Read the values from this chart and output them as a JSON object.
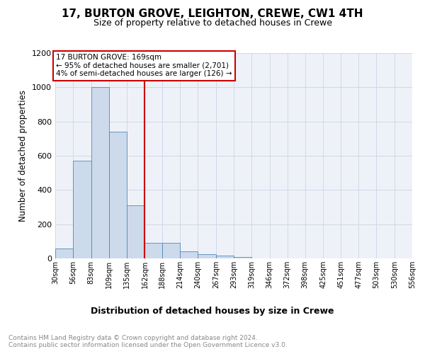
{
  "title": "17, BURTON GROVE, LEIGHTON, CREWE, CW1 4TH",
  "subtitle": "Size of property relative to detached houses in Crewe",
  "xlabel": "Distribution of detached houses by size in Crewe",
  "ylabel": "Number of detached properties",
  "bar_color": "#ccdaeb",
  "bar_edge_color": "#5588bb",
  "background_color": "#eef2f8",
  "grid_color": "#d0d8e8",
  "annotation_box_color": "#cc0000",
  "vline_color": "#cc0000",
  "vline_x_bin_index": 6,
  "annotation_lines": [
    "17 BURTON GROVE: 169sqm",
    "← 95% of detached houses are smaller (2,701)",
    "4% of semi-detached houses are larger (126) →"
  ],
  "bins": [
    30,
    56,
    83,
    109,
    135,
    162,
    188,
    214,
    240,
    267,
    293,
    319,
    346,
    372,
    398,
    425,
    451,
    477,
    503,
    530,
    556
  ],
  "bar_heights": [
    60,
    570,
    1000,
    740,
    310,
    90,
    90,
    40,
    25,
    15,
    10,
    0,
    0,
    0,
    0,
    0,
    0,
    0,
    0,
    0
  ],
  "tick_labels": [
    "30sqm",
    "56sqm",
    "83sqm",
    "109sqm",
    "135sqm",
    "162sqm",
    "188sqm",
    "214sqm",
    "240sqm",
    "267sqm",
    "293sqm",
    "319sqm",
    "346sqm",
    "372sqm",
    "398sqm",
    "425sqm",
    "451sqm",
    "477sqm",
    "503sqm",
    "530sqm",
    "556sqm"
  ],
  "ylim": [
    0,
    1200
  ],
  "yticks": [
    0,
    200,
    400,
    600,
    800,
    1000,
    1200
  ],
  "footer_line1": "Contains HM Land Registry data © Crown copyright and database right 2024.",
  "footer_line2": "Contains public sector information licensed under the Open Government Licence v3.0."
}
